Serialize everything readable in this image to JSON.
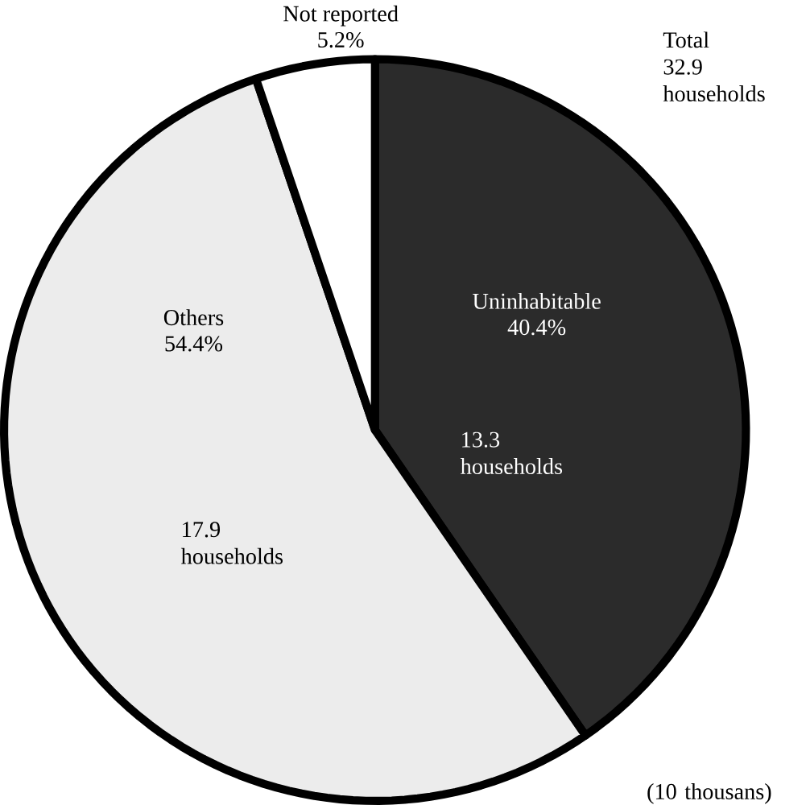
{
  "chart_data": {
    "type": "pie",
    "categories": [
      "Uninhabitable",
      "Others",
      "Not reported"
    ],
    "values": [
      40.4,
      54.4,
      5.2
    ],
    "value_labels": [
      "40.4%",
      "54.4%",
      "5.2%"
    ],
    "colors": [
      "#2b2b2b",
      "#ececec",
      "#ffffff"
    ],
    "annotations": [
      "13.3 households",
      "17.9 households",
      "Total 32.9 households",
      "(10 thousans)"
    ]
  }
}
